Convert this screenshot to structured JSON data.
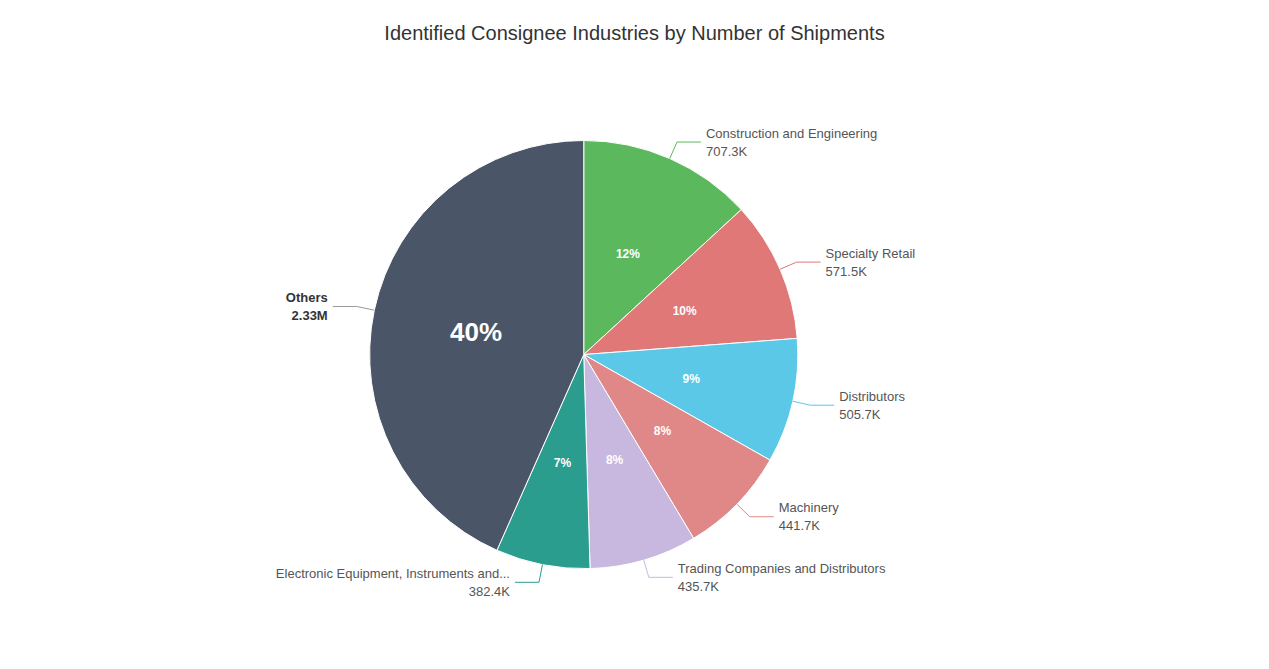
{
  "chart_data": {
    "type": "pie",
    "title": "Identified Consignee Industries by Number of Shipments",
    "categories": [
      "Construction and Engineering",
      "Specialty Retail",
      "Distributors",
      "Machinery",
      "Trading Companies and Distributors",
      "Electronic Equipment, Instruments and...",
      "Others"
    ],
    "values": [
      707.3,
      571.5,
      505.7,
      441.7,
      435.7,
      382.4,
      2330.0
    ],
    "value_labels": [
      "707.3K",
      "571.5K",
      "505.7K",
      "441.7K",
      "435.7K",
      "382.4K",
      "2.33M"
    ],
    "percent_values": [
      12,
      10,
      9,
      8,
      8,
      7,
      40
    ],
    "percent_labels": [
      "12%",
      "10%",
      "9%",
      "8%",
      "8%",
      "7%",
      "40%"
    ],
    "colors": [
      "#5cb85c",
      "#e07878",
      "#5bc8e8",
      "#e08888",
      "#c8b8e0",
      "#2a9d8f",
      "#4a5568"
    ],
    "data_labels": true
  }
}
